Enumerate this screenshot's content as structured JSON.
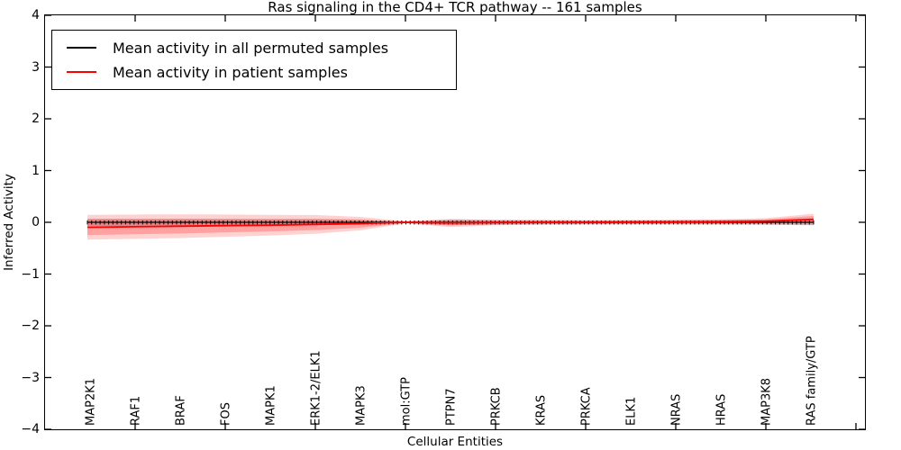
{
  "chart_data": {
    "type": "line",
    "title": "Ras signaling in the CD4+ TCR pathway -- 161 samples",
    "xlabel": "Cellular Entities",
    "ylabel": "Inferred Activity",
    "ylim": [
      -4,
      4
    ],
    "ytick_labels": [
      "4",
      "3",
      "2",
      "1",
      "0",
      "−1",
      "−2",
      "−3",
      "−4"
    ],
    "grid": false,
    "legend_position": "upper left",
    "categories": [
      "MAP2K1",
      "RAF1",
      "BRAF",
      "FOS",
      "MAPK1",
      "ERK1-2/ELK1",
      "MAPK3",
      "mol:GTP",
      "PTPN7",
      "PRKCB",
      "KRAS",
      "PRKCA",
      "ELK1",
      "NRAS",
      "HRAS",
      "MAP3K8",
      "RAS family/GTP"
    ],
    "n_points_approx": 172,
    "series": [
      {
        "name": "Mean activity in all permuted samples",
        "color": "#000000",
        "band_color": "#999999",
        "values": [
          0,
          0,
          0,
          0,
          0,
          0,
          0,
          0,
          0,
          0,
          0,
          0,
          0,
          0,
          0,
          0,
          0
        ],
        "band_halfwidth": [
          0.07,
          0.068,
          0.066,
          0.063,
          0.06,
          0.055,
          0.045,
          0.012,
          0.05,
          0.045,
          0.042,
          0.04,
          0.04,
          0.04,
          0.042,
          0.045,
          0.055
        ],
        "marker": "vertical-dash"
      },
      {
        "name": "Mean activity in patient samples",
        "color": "#ff0000",
        "band_color": "#ff3333",
        "values": [
          -0.095,
          -0.085,
          -0.075,
          -0.065,
          -0.055,
          -0.04,
          -0.025,
          0.0,
          -0.012,
          -0.004,
          0.0,
          0.0,
          0.004,
          0.006,
          0.01,
          0.02,
          0.055
        ],
        "band_halfwidth_outer": [
          0.24,
          0.235,
          0.23,
          0.215,
          0.2,
          0.18,
          0.13,
          0.02,
          0.08,
          0.05,
          0.045,
          0.04,
          0.04,
          0.045,
          0.05,
          0.06,
          0.105
        ],
        "band_halfwidth_inner": [
          0.15,
          0.145,
          0.14,
          0.13,
          0.12,
          0.11,
          0.08,
          0.012,
          0.05,
          0.032,
          0.028,
          0.025,
          0.025,
          0.028,
          0.032,
          0.038,
          0.065
        ],
        "marker": "none"
      }
    ]
  },
  "legend": {
    "items": [
      {
        "label": "Mean activity in all permuted samples",
        "color": "#000000"
      },
      {
        "label": "Mean activity in patient samples",
        "color": "#ff0000"
      }
    ]
  }
}
